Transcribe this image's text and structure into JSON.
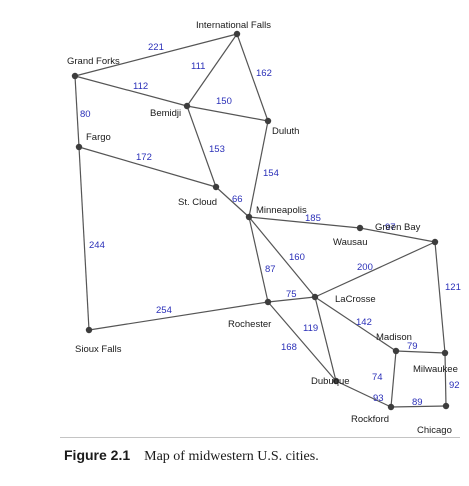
{
  "diagram": {
    "nodes": [
      {
        "id": "intl_falls",
        "label": "International Falls"
      },
      {
        "id": "grand_forks",
        "label": "Grand Forks"
      },
      {
        "id": "bemidji",
        "label": "Bemidji"
      },
      {
        "id": "duluth",
        "label": "Duluth"
      },
      {
        "id": "fargo",
        "label": "Fargo"
      },
      {
        "id": "st_cloud",
        "label": "St. Cloud"
      },
      {
        "id": "minneapolis",
        "label": "Minneapolis"
      },
      {
        "id": "wausau",
        "label": "Wausau"
      },
      {
        "id": "green_bay",
        "label": "Green Bay"
      },
      {
        "id": "lacrosse",
        "label": "LaCrosse"
      },
      {
        "id": "rochester",
        "label": "Rochester"
      },
      {
        "id": "sioux_falls",
        "label": "Sioux Falls"
      },
      {
        "id": "madison",
        "label": "Madison"
      },
      {
        "id": "milwaukee",
        "label": "Milwaukee"
      },
      {
        "id": "dubuque",
        "label": "Dubuque"
      },
      {
        "id": "rockford",
        "label": "Rockford"
      },
      {
        "id": "chicago",
        "label": "Chicago"
      }
    ],
    "edges": [
      {
        "from": "grand_forks",
        "to": "intl_falls",
        "weight": "221"
      },
      {
        "from": "intl_falls",
        "to": "bemidji",
        "weight": "111"
      },
      {
        "from": "intl_falls",
        "to": "duluth",
        "weight": "162"
      },
      {
        "from": "grand_forks",
        "to": "bemidji",
        "weight": "112"
      },
      {
        "from": "grand_forks",
        "to": "fargo",
        "weight": "80"
      },
      {
        "from": "bemidji",
        "to": "duluth",
        "weight": "150"
      },
      {
        "from": "bemidji",
        "to": "st_cloud",
        "weight": "153"
      },
      {
        "from": "fargo",
        "to": "st_cloud",
        "weight": "172"
      },
      {
        "from": "duluth",
        "to": "minneapolis",
        "weight": "154"
      },
      {
        "from": "st_cloud",
        "to": "minneapolis",
        "weight": "66"
      },
      {
        "from": "fargo",
        "to": "sioux_falls",
        "weight": "244"
      },
      {
        "from": "minneapolis",
        "to": "wausau",
        "weight": "185"
      },
      {
        "from": "wausau",
        "to": "green_bay",
        "weight": "97"
      },
      {
        "from": "minneapolis",
        "to": "lacrosse",
        "weight": "160"
      },
      {
        "from": "minneapolis",
        "to": "rochester",
        "weight": "87"
      },
      {
        "from": "lacrosse",
        "to": "green_bay",
        "weight": "200"
      },
      {
        "from": "green_bay",
        "to": "milwaukee",
        "weight": "121"
      },
      {
        "from": "sioux_falls",
        "to": "rochester",
        "weight": "254"
      },
      {
        "from": "rochester",
        "to": "lacrosse",
        "weight": "75"
      },
      {
        "from": "lacrosse",
        "to": "madison",
        "weight": "142"
      },
      {
        "from": "lacrosse",
        "to": "dubuque",
        "weight": "119"
      },
      {
        "from": "rochester",
        "to": "dubuque",
        "weight": "168"
      },
      {
        "from": "madison",
        "to": "milwaukee",
        "weight": "79"
      },
      {
        "from": "madison",
        "to": "rockford",
        "weight": "74"
      },
      {
        "from": "dubuque",
        "to": "rockford",
        "weight": "93"
      },
      {
        "from": "rockford",
        "to": "chicago",
        "weight": "89"
      },
      {
        "from": "milwaukee",
        "to": "chicago",
        "weight": "92"
      }
    ]
  },
  "caption": {
    "number": "Figure 2.1",
    "text": "Map of midwestern U.S. cities."
  },
  "colors": {
    "edge": "#555555",
    "node": "#3d3d3d",
    "city_text": "#1a1a1a",
    "weight_text": "#2a2fb8"
  }
}
